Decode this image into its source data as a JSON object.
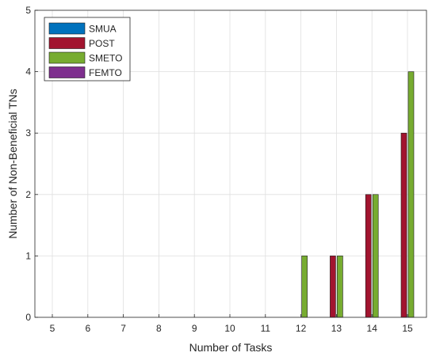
{
  "chart_data": {
    "type": "bar",
    "title": "",
    "xlabel": "Number of Tasks",
    "ylabel": "Number of Non-Beneficial TNs",
    "categories": [
      "5",
      "6",
      "7",
      "8",
      "9",
      "10",
      "11",
      "12",
      "13",
      "14",
      "15"
    ],
    "ylim": [
      0,
      5
    ],
    "yticks": [
      "0",
      "1",
      "2",
      "3",
      "4",
      "5"
    ],
    "grid": true,
    "legend_position": "top-left",
    "series": [
      {
        "name": "SMUA",
        "color": "#0072bd",
        "values": [
          0,
          0,
          0,
          0,
          0,
          0,
          0,
          0,
          0,
          0,
          0
        ]
      },
      {
        "name": "POST",
        "color": "#a2142f",
        "values": [
          0,
          0,
          0,
          0,
          0,
          0,
          0,
          0,
          1,
          2,
          3
        ]
      },
      {
        "name": "SMETO",
        "color": "#77ac30",
        "values": [
          0,
          0,
          0,
          0,
          0,
          0,
          0,
          1,
          1,
          2,
          4
        ]
      },
      {
        "name": "FEMTO",
        "color": "#7e2f8e",
        "values": [
          0,
          0,
          0,
          0,
          0,
          0,
          0,
          0,
          0,
          0,
          0
        ]
      }
    ]
  }
}
